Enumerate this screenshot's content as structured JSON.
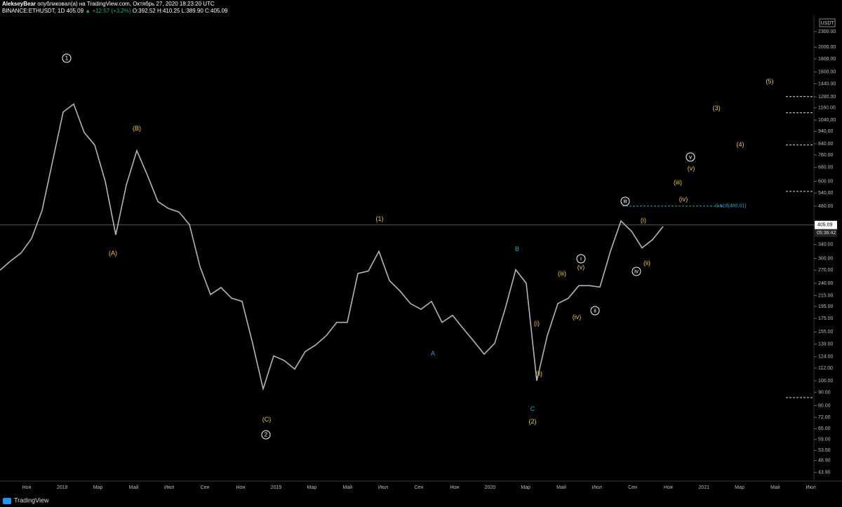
{
  "header": {
    "author": "AlekseyBear",
    "published": "опубликовал(а) на TradingView.com, Октябрь 27, 2020 18:23:20 UTC",
    "symbol": "BINANCE:ETHUSDT, 1D",
    "last": "405.09",
    "change": "▲ +12.57 (+3.2%)",
    "ohlc": "O:392.52 H:410.25 L:389.90 C:405.09"
  },
  "chart_data": {
    "type": "line",
    "log_scale": true,
    "currency": "USDT",
    "ylim": [
      42.2,
      2660
    ],
    "yticks": [
      {
        "value": 2300,
        "label": "2300.00"
      },
      {
        "value": 2000,
        "label": "2000.00"
      },
      {
        "value": 1800,
        "label": "1800.00"
      },
      {
        "value": 1600,
        "label": "1600.00"
      },
      {
        "value": 1440,
        "label": "1440.00"
      },
      {
        "value": 1280,
        "label": "1280.00"
      },
      {
        "value": 1160,
        "label": "1160.00"
      },
      {
        "value": 1040,
        "label": "1040.00"
      },
      {
        "value": 940,
        "label": "940.00"
      },
      {
        "value": 840,
        "label": "840.00"
      },
      {
        "value": 760,
        "label": "760.00"
      },
      {
        "value": 680,
        "label": "680.00"
      },
      {
        "value": 600,
        "label": "600.00"
      },
      {
        "value": 540,
        "label": "540.00"
      },
      {
        "value": 480,
        "label": "480.00"
      },
      {
        "value": 340,
        "label": "340.00"
      },
      {
        "value": 300,
        "label": "300.00"
      },
      {
        "value": 270,
        "label": "270.00"
      },
      {
        "value": 240,
        "label": "240.00"
      },
      {
        "value": 215,
        "label": "215.00"
      },
      {
        "value": 195,
        "label": "195.00"
      },
      {
        "value": 175,
        "label": "175.00"
      },
      {
        "value": 155,
        "label": "155.00"
      },
      {
        "value": 139,
        "label": "139.00"
      },
      {
        "value": 124,
        "label": "124.00"
      },
      {
        "value": 112,
        "label": "112.00"
      },
      {
        "value": 100,
        "label": "100.00"
      },
      {
        "value": 90,
        "label": "90.00"
      },
      {
        "value": 80,
        "label": "80.00"
      },
      {
        "value": 72,
        "label": "72.00"
      },
      {
        "value": 65,
        "label": "65.00"
      },
      {
        "value": 59,
        "label": "59.00"
      },
      {
        "value": 53.5,
        "label": "53.50"
      },
      {
        "value": 48.9,
        "label": "48.90"
      },
      {
        "value": 43.9,
        "label": "43.90"
      }
    ],
    "x_labels": [
      "Ноя",
      "2018",
      "Мар",
      "Май",
      "Июл",
      "Сен",
      "Ноя",
      "2019",
      "Мар",
      "Май",
      "Июл",
      "Сен",
      "Ноя",
      "2020",
      "Мар",
      "Май",
      "Июл",
      "Сен",
      "Ноя",
      "2021",
      "Мар",
      "Май",
      "Июл"
    ],
    "series": [
      {
        "color": "#b2b5be",
        "values": [
          270,
          293,
          315,
          359,
          462,
          719,
          1117,
          1200,
          930,
          830,
          600,
          371,
          580,
          790,
          634,
          500,
          470,
          455,
          407,
          279,
          217,
          231,
          210,
          204,
          140,
          93,
          125,
          120,
          111,
          130,
          138,
          150,
          169,
          169,
          262,
          268,
          320,
          246,
          224,
          200,
          190,
          204,
          169,
          180,
          160,
          143,
          127,
          140,
          191,
          271,
          240,
          100,
          150,
          200,
          210,
          235,
          235,
          232,
          320,
          420,
          383,
          330,
          355,
          400
        ]
      }
    ],
    "last_price": 405.09,
    "countdown": "05:36:42",
    "fib_level": {
      "value": 480.01,
      "label": "0.618(480.01)",
      "color": "#2fa3c8"
    },
    "target_levels": [
      1283,
      1110,
      831,
      548,
      86
    ],
    "annotations": [
      {
        "text": "1",
        "circled": true,
        "color": "#ffffff"
      },
      {
        "text": "2",
        "circled": true,
        "color": "#ffffff"
      },
      {
        "text": "i",
        "circled": true,
        "color": "#ffffff"
      },
      {
        "text": "ii",
        "circled": true,
        "color": "#ffffff"
      },
      {
        "text": "iii",
        "circled": true,
        "color": "#ffffff"
      },
      {
        "text": "iv",
        "circled": true,
        "color": "#ffffff"
      },
      {
        "text": "v",
        "circled": true,
        "color": "#ffffff"
      },
      {
        "text": "(A)",
        "circled": false,
        "color": "#f0c94a"
      },
      {
        "text": "(B)",
        "circled": false,
        "color": "#f0c94a"
      },
      {
        "text": "(C)",
        "circled": false,
        "color": "#f0c94a"
      },
      {
        "text": "(1)",
        "circled": false,
        "color": "#f0c94a"
      },
      {
        "text": "(2)",
        "circled": false,
        "color": "#f0c94a"
      },
      {
        "text": "(3)",
        "circled": false,
        "color": "#f0c94a"
      },
      {
        "text": "(4)",
        "circled": false,
        "color": "#f0c94a"
      },
      {
        "text": "(5)",
        "circled": false,
        "color": "#f0c94a"
      },
      {
        "text": "A",
        "circled": false,
        "color": "#2fa3c8"
      },
      {
        "text": "B",
        "circled": false,
        "color": "#2fa3c8"
      },
      {
        "text": "C",
        "circled": false,
        "color": "#2fa3c8"
      },
      {
        "text": "(i)",
        "circled": false,
        "color": "#f0c94a"
      },
      {
        "text": "(ii)",
        "circled": false,
        "color": "#f0c94a"
      },
      {
        "text": "(iii)",
        "circled": false,
        "color": "#f0c94a"
      },
      {
        "text": "(iv)",
        "circled": false,
        "color": "#f0c94a"
      },
      {
        "text": "(v)",
        "circled": false,
        "color": "#f0c94a"
      },
      {
        "text": "(i)",
        "circled": false,
        "color": "#f0c94a"
      },
      {
        "text": "(ii)",
        "circled": false,
        "color": "#f0c94a"
      },
      {
        "text": "(iii)",
        "circled": false,
        "color": "#f0c94a"
      },
      {
        "text": "(iv)",
        "circled": false,
        "color": "#f0c94a"
      },
      {
        "text": "(v)",
        "circled": false,
        "color": "#f0c94a"
      }
    ]
  },
  "footer": {
    "brand": "TradingView"
  }
}
